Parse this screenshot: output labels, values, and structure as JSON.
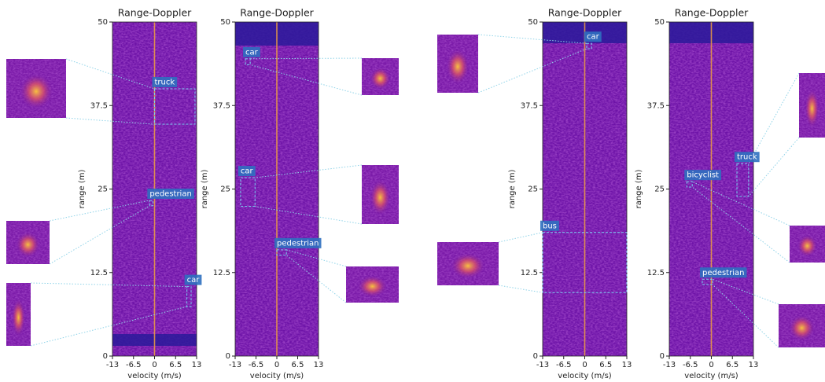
{
  "chart_data": [
    {
      "type": "heatmap",
      "title": "Range-Doppler",
      "xlabel": "velocity (m/s)",
      "ylabel": "range (m)",
      "xlim": [
        -13,
        13
      ],
      "ylim": [
        0,
        50
      ],
      "xticks": [
        -13,
        -6.5,
        0,
        6.5,
        13
      ],
      "yticks": [
        0,
        12.5,
        25,
        37.5,
        50
      ],
      "annotations": [
        {
          "label": "truck",
          "x": [
            0,
            12.5
          ],
          "y": [
            34.7,
            40
          ]
        },
        {
          "label": "pedestrian",
          "x": [
            -1.5,
            -0.5
          ],
          "y": [
            22.5,
            23.3
          ]
        },
        {
          "label": "car",
          "x": [
            10,
            11.3
          ],
          "y": [
            7.4,
            10.4
          ]
        }
      ]
    },
    {
      "type": "heatmap",
      "title": "Range-Doppler",
      "xlabel": "velocity (m/s)",
      "ylabel": "range (m)",
      "xlim": [
        -13,
        13
      ],
      "ylim": [
        0,
        50
      ],
      "xticks": [
        -13,
        -6.5,
        0,
        6.5,
        13
      ],
      "yticks": [
        0,
        12.5,
        25,
        37.5,
        50
      ],
      "annotations": [
        {
          "label": "car",
          "x": [
            -9.8,
            -8.3
          ],
          "y": [
            43.6,
            44.5
          ]
        },
        {
          "label": "car",
          "x": [
            -11.3,
            -6.8
          ],
          "y": [
            22.4,
            26.7
          ]
        },
        {
          "label": "pedestrian",
          "x": [
            0,
            3
          ],
          "y": [
            15.1,
            15.9
          ]
        }
      ]
    },
    {
      "type": "heatmap",
      "title": "Range-Doppler",
      "xlabel": "velocity (m/s)",
      "ylabel": "range (m)",
      "xlim": [
        -13,
        13
      ],
      "ylim": [
        0,
        50
      ],
      "xticks": [
        -13,
        -6.5,
        0,
        6.5,
        13
      ],
      "yticks": [
        0,
        12.5,
        25,
        37.5,
        50
      ],
      "annotations": [
        {
          "label": "car",
          "x": [
            0.6,
            2.1
          ],
          "y": [
            46,
            46.8
          ]
        },
        {
          "label": "bus",
          "x": [
            -13,
            13
          ],
          "y": [
            9.5,
            18.5
          ]
        }
      ]
    },
    {
      "type": "heatmap",
      "title": "Range-Doppler",
      "xlabel": "velocity (m/s)",
      "ylabel": "range (m)",
      "xlim": [
        -13,
        13
      ],
      "ylim": [
        0,
        50
      ],
      "xticks": [
        -13,
        -6.5,
        0,
        6.5,
        13
      ],
      "yticks": [
        0,
        12.5,
        25,
        37.5,
        50
      ],
      "annotations": [
        {
          "label": "bicyclist",
          "x": [
            -7.6,
            -5.9
          ],
          "y": [
            25.3,
            26.1
          ]
        },
        {
          "label": "truck",
          "x": [
            7.9,
            11.5
          ],
          "y": [
            23.9,
            28.8
          ]
        },
        {
          "label": "pedestrian",
          "x": [
            -2.8,
            0.4
          ],
          "y": [
            10.7,
            11.5
          ]
        }
      ]
    }
  ]
}
